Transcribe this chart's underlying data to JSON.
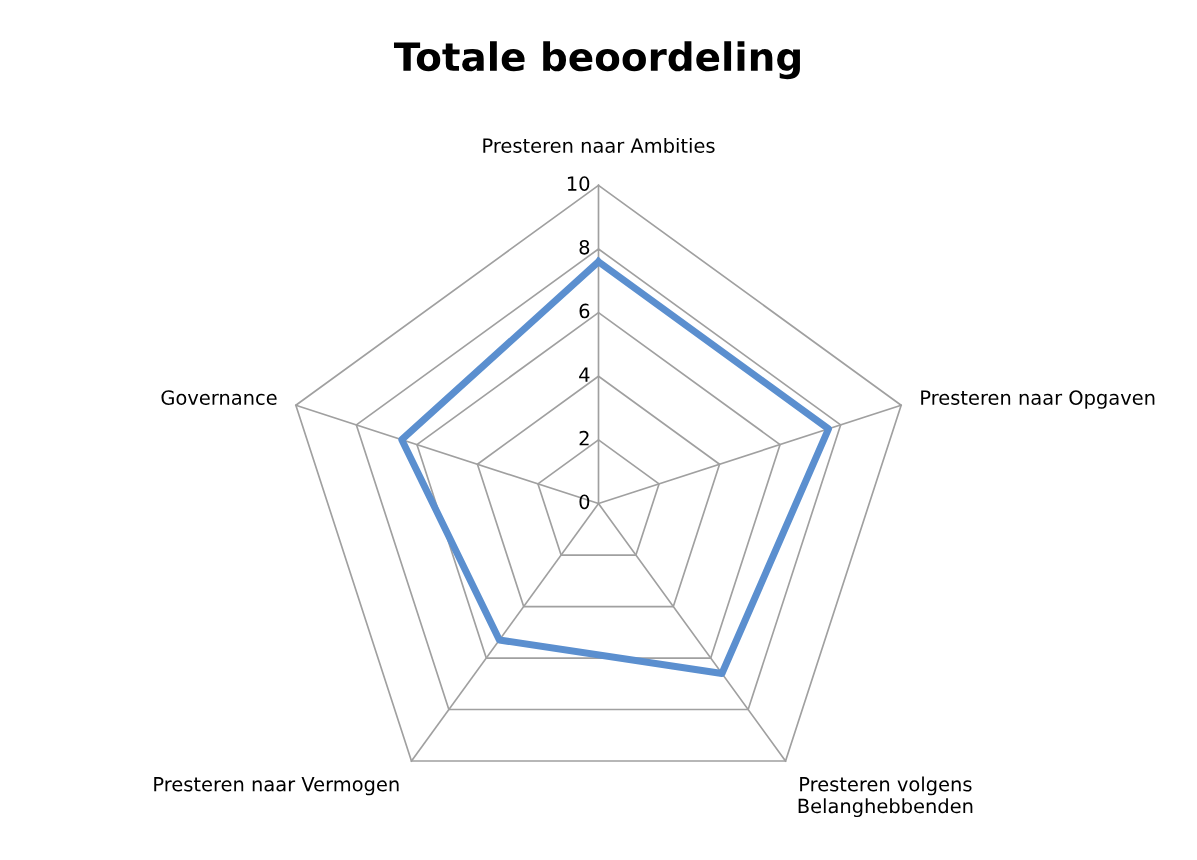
{
  "chart_data": {
    "type": "radar",
    "title": "Totale beoordeling",
    "categories": [
      "Presteren naar Ambities",
      "Presteren naar Opgaven",
      "Presteren volgens\nBelanghebbenden",
      "Presteren naar Vermogen",
      "Governance"
    ],
    "series": [
      {
        "color": "#5b8fcf",
        "values": [
          7.6,
          7.6,
          6.6,
          5.3,
          6.5
        ]
      }
    ],
    "ylim": [
      0,
      10
    ],
    "yticks": [
      0,
      2,
      4,
      6,
      8,
      10
    ],
    "grid": true,
    "marker": "none",
    "line_style": "solid"
  }
}
